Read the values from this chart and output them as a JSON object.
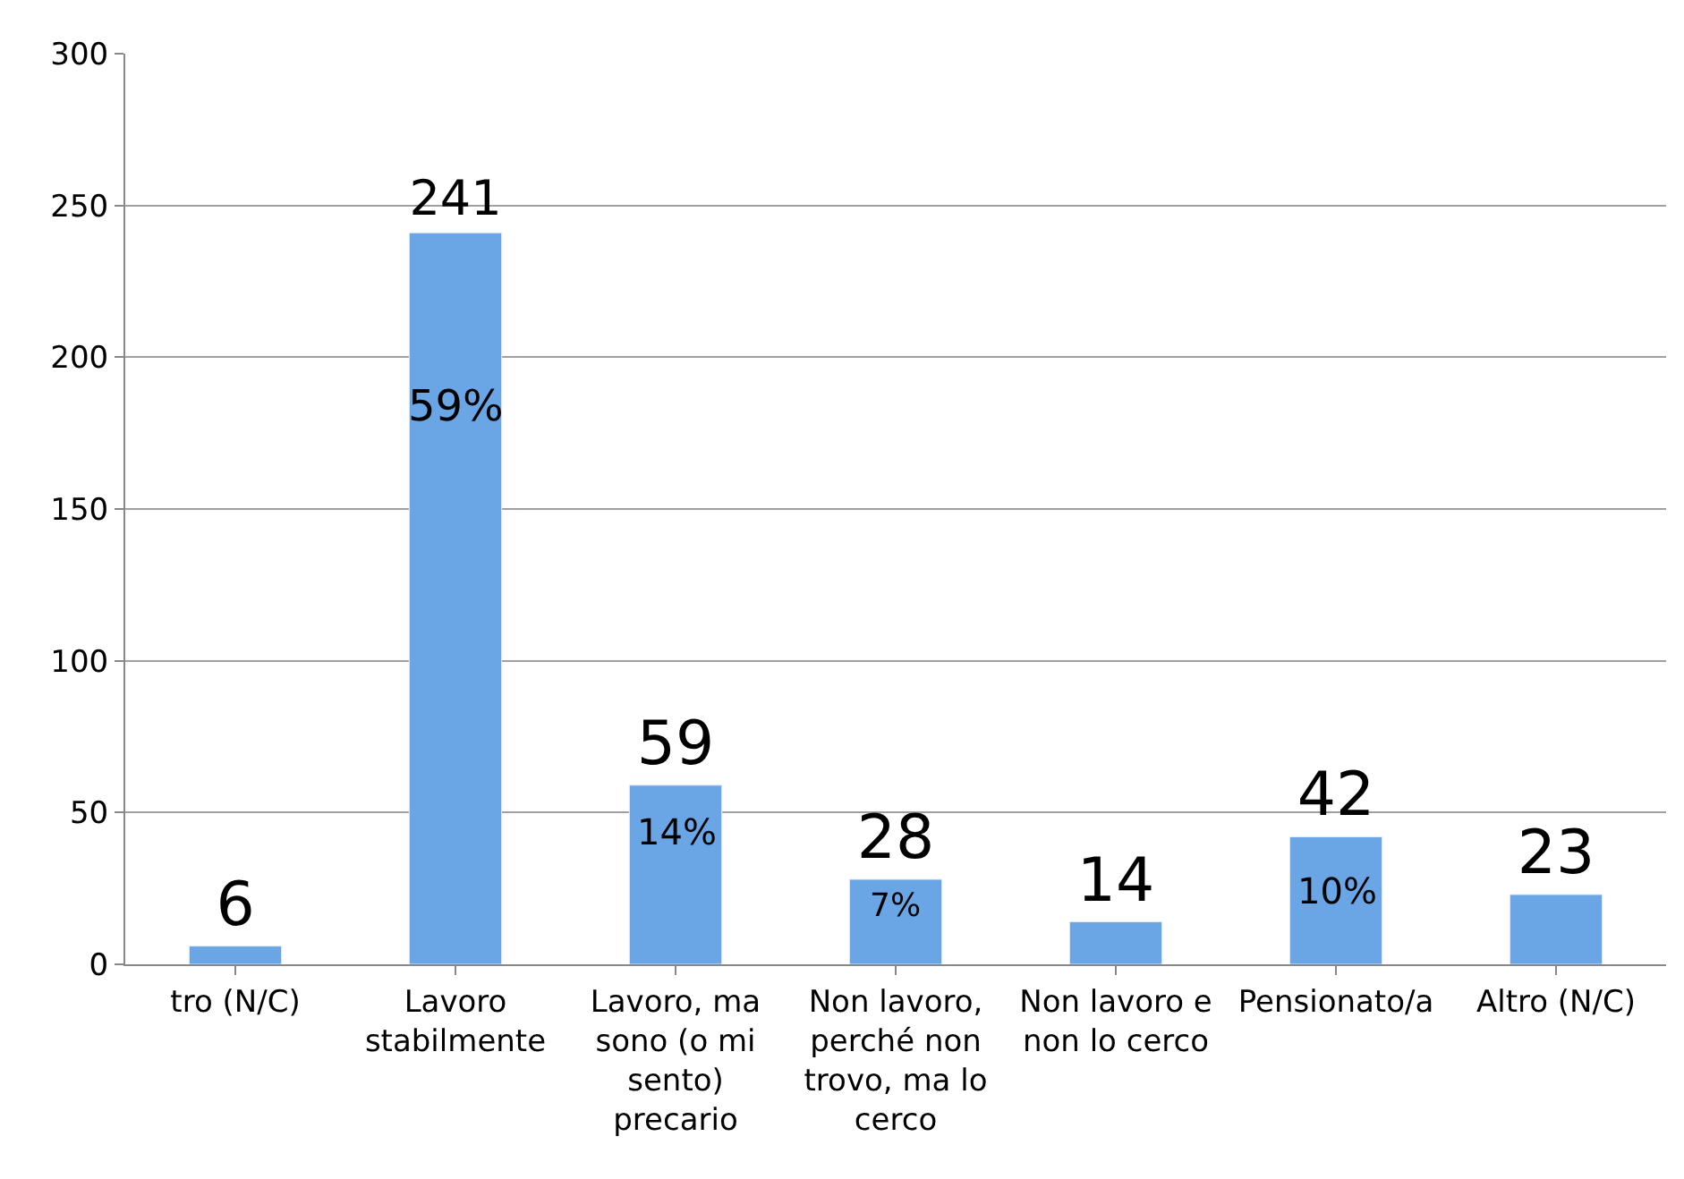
{
  "chart_data": {
    "type": "bar",
    "categories": [
      "tro (N/C)",
      "Lavoro stabilmente",
      "Lavoro, ma sono (o mi sento) precario",
      "Non lavoro, perché non trovo, ma lo cerco",
      "Non lavoro e non lo cerco",
      "Pensionato/a",
      "Altro (N/C)"
    ],
    "values": [
      6,
      241,
      59,
      28,
      14,
      42,
      23
    ],
    "color": "#6aa6e6",
    "data_labels": true,
    "annotations": [
      "59%",
      "14%",
      "7%",
      "10%"
    ],
    "ylim": [
      0,
      300
    ],
    "yticks": [
      0,
      50,
      100,
      150,
      200,
      250,
      300
    ],
    "grid": "y"
  }
}
